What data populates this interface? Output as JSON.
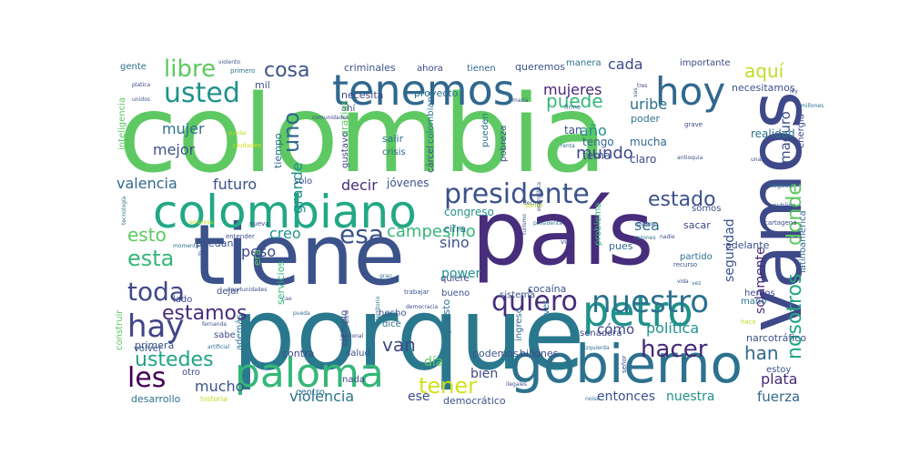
{
  "words": [
    {
      "text": "colombia",
      "color": "#5ec962"
    },
    {
      "text": "país",
      "color": "#472d7b"
    },
    {
      "text": "porque",
      "color": "#2a788e"
    },
    {
      "text": "tiene",
      "color": "#3b528b"
    },
    {
      "text": "vamos",
      "color": "#3e4989"
    },
    {
      "text": "gobierno",
      "color": "#2c728e"
    },
    {
      "text": "colombiano",
      "color": "#22a884"
    },
    {
      "text": "paloma",
      "color": "#35b779"
    },
    {
      "text": "tenemos",
      "color": "#31688e"
    },
    {
      "text": "petro",
      "color": "#21918c"
    },
    {
      "text": "hoy",
      "color": "#31688e"
    },
    {
      "text": "presidente",
      "color": "#3b528b"
    },
    {
      "text": "hay",
      "color": "#414487"
    },
    {
      "text": "nuestro",
      "color": "#2c728e"
    },
    {
      "text": "hacer",
      "color": "#482878"
    },
    {
      "text": "quiero",
      "color": "#472d7b"
    },
    {
      "text": "esa",
      "color": "#3b528b"
    },
    {
      "text": "toda",
      "color": "#3e4989"
    },
    {
      "text": "les",
      "color": "#440154"
    },
    {
      "text": "usted",
      "color": "#21918c"
    },
    {
      "text": "libre",
      "color": "#5ec962"
    },
    {
      "text": "cosa",
      "color": "#3b528b"
    },
    {
      "text": "uno",
      "color": "#31688e"
    },
    {
      "text": "puede",
      "color": "#35b779"
    },
    {
      "text": "aquí",
      "color": "#bddf26"
    },
    {
      "text": "estado",
      "color": "#3b528b"
    },
    {
      "text": "donde",
      "color": "#5ec962"
    },
    {
      "text": "nosotros",
      "color": "#22a884"
    },
    {
      "text": "tener",
      "color": "#d2e21b"
    },
    {
      "text": "ustedes",
      "color": "#20a486"
    },
    {
      "text": "estamos",
      "color": "#472d7b"
    },
    {
      "text": "esta",
      "color": "#35b779"
    },
    {
      "text": "esto",
      "color": "#5ec962"
    },
    {
      "text": "van",
      "color": "#3e4989"
    },
    {
      "text": "han",
      "color": "#31688e"
    },
    {
      "text": "campesino",
      "color": "#35b779"
    },
    {
      "text": "grande",
      "color": "#21918c"
    },
    {
      "text": "mundo",
      "color": "#3e4989"
    },
    {
      "text": "año",
      "color": "#21918c"
    },
    {
      "text": "mujeres",
      "color": "#482878"
    },
    {
      "text": "mujer",
      "color": "#2c728e"
    },
    {
      "text": "mejor",
      "color": "#3b528b"
    },
    {
      "text": "futuro",
      "color": "#3b528b"
    },
    {
      "text": "valencia",
      "color": "#31688e"
    },
    {
      "text": "decir",
      "color": "#472d7b"
    },
    {
      "text": "creo",
      "color": "#21918c"
    },
    {
      "text": "peso",
      "color": "#3e4989"
    },
    {
      "text": "sino",
      "color": "#3b528b"
    },
    {
      "text": "sea",
      "color": "#2c728e"
    },
    {
      "text": "cada",
      "color": "#3e4989"
    },
    {
      "text": "uribe",
      "color": "#2c728e"
    },
    {
      "text": "maduro",
      "color": "#3b528b"
    },
    {
      "text": "política",
      "color": "#21918c"
    },
    {
      "text": "cómo",
      "color": "#3e4989"
    },
    {
      "text": "mucho",
      "color": "#3b528b"
    },
    {
      "text": "plata",
      "color": "#482878"
    },
    {
      "text": "fuerza",
      "color": "#31688e"
    },
    {
      "text": "nuestra",
      "color": "#21918c"
    },
    {
      "text": "entonces",
      "color": "#3b528b"
    },
    {
      "text": "violencia",
      "color": "#2c728e"
    },
    {
      "text": "ese",
      "color": "#3e4989"
    },
    {
      "text": "día",
      "color": "#5ec962"
    },
    {
      "text": "bien",
      "color": "#3e4989"
    },
    {
      "text": "power",
      "color": "#21918c"
    },
    {
      "text": "seguridad",
      "color": "#3b528b"
    },
    {
      "text": "solamente",
      "color": "#482878"
    },
    {
      "text": "realidad",
      "color": "#2c728e"
    },
    {
      "text": "tengo",
      "color": "#31688e"
    },
    {
      "text": "tema",
      "color": "#3b528b"
    },
    {
      "text": "claro",
      "color": "#3e4989"
    },
    {
      "text": "mucha",
      "color": "#31688e"
    },
    {
      "text": "tan",
      "color": "#3b528b"
    },
    {
      "text": "poder",
      "color": "#2c728e"
    },
    {
      "text": "necesitamos",
      "color": "#3b528b"
    },
    {
      "text": "importante",
      "color": "#3e4989"
    },
    {
      "text": "queremos",
      "color": "#3b528b"
    },
    {
      "text": "manera",
      "color": "#2c728e"
    },
    {
      "text": "tienen",
      "color": "#31688e"
    },
    {
      "text": "ahora",
      "color": "#3e4989"
    },
    {
      "text": "criminales",
      "color": "#3b528b"
    },
    {
      "text": "gente",
      "color": "#2c728e"
    },
    {
      "text": "necesita",
      "color": "#3e4989"
    },
    {
      "text": "proyecto",
      "color": "#2c728e"
    },
    {
      "text": "mil",
      "color": "#3b528b"
    },
    {
      "text": "ahí",
      "color": "#3e4989"
    },
    {
      "text": "gracias",
      "color": "#5ec962"
    },
    {
      "text": "salir",
      "color": "#2c728e"
    },
    {
      "text": "crisis",
      "color": "#31688e"
    },
    {
      "text": "gustavo",
      "color": "#3e4989"
    },
    {
      "text": "tiempo",
      "color": "#2c728e"
    },
    {
      "text": "solo",
      "color": "#3b528b"
    },
    {
      "text": "jóvenes",
      "color": "#3b528b"
    },
    {
      "text": "congreso",
      "color": "#21918c"
    },
    {
      "text": "cifra",
      "color": "#31688e"
    },
    {
      "text": "colombiana",
      "color": "#2c728e"
    },
    {
      "text": "cárcel",
      "color": "#3e4989"
    },
    {
      "text": "pueden",
      "color": "#2c728e"
    },
    {
      "text": "pobreza",
      "color": "#3b528b"
    },
    {
      "text": "inteligencia",
      "color": "#5ec962"
    },
    {
      "text": "problema",
      "color": "#35b779"
    },
    {
      "text": "pues",
      "color": "#31688e"
    },
    {
      "text": "sacar",
      "color": "#3e4989"
    },
    {
      "text": "somos",
      "color": "#3b528b"
    },
    {
      "text": "adelante",
      "color": "#3b528b"
    },
    {
      "text": "latinoamérica",
      "color": "#31688e"
    },
    {
      "text": "partido",
      "color": "#2c728e"
    },
    {
      "text": "energía",
      "color": "#3e4989"
    },
    {
      "text": "narcotráfico",
      "color": "#3b528b"
    },
    {
      "text": "hemos",
      "color": "#3e4989"
    },
    {
      "text": "mano",
      "color": "#2c728e"
    },
    {
      "text": "estoy",
      "color": "#3b528b"
    },
    {
      "text": "senadora",
      "color": "#3e4989"
    },
    {
      "text": "ingreso",
      "color": "#31688e"
    },
    {
      "text": "podemos",
      "color": "#3b528b"
    },
    {
      "text": "billones",
      "color": "#3e4989"
    },
    {
      "text": "democrático",
      "color": "#3b528b"
    },
    {
      "text": "cocaína",
      "color": "#3b528b"
    },
    {
      "text": "impuesto",
      "color": "#2c728e"
    },
    {
      "text": "salud",
      "color": "#3b528b"
    },
    {
      "text": "contra",
      "color": "#3e4989"
    },
    {
      "text": "centro",
      "color": "#2c728e"
    },
    {
      "text": "primera",
      "color": "#3b528b"
    },
    {
      "text": "sabe",
      "color": "#3e4989"
    },
    {
      "text": "desarrollo",
      "color": "#2c728e"
    },
    {
      "text": "volver",
      "color": "#3b528b"
    },
    {
      "text": "lado",
      "color": "#3e4989"
    },
    {
      "text": "además",
      "color": "#2c728e"
    },
    {
      "text": "dejar",
      "color": "#3b528b"
    },
    {
      "text": "era",
      "color": "#5ec962"
    },
    {
      "text": "servicios",
      "color": "#35b779"
    },
    {
      "text": "puedan",
      "color": "#3b528b"
    },
    {
      "text": "construir",
      "color": "#5ec962"
    },
    {
      "text": "ejemplo",
      "color": "#3e4989"
    },
    {
      "text": "hecho",
      "color": "#3b528b"
    },
    {
      "text": "dice",
      "color": "#2c728e"
    },
    {
      "text": "nada",
      "color": "#3e4989"
    },
    {
      "text": "bueno",
      "color": "#3b528b"
    },
    {
      "text": "quiere",
      "color": "#3e4989"
    },
    {
      "text": "sistema",
      "color": "#3b528b"
    },
    {
      "text": "ver",
      "color": "#2c728e"
    },
    {
      "text": "otro",
      "color": "#3e4989"
    },
    {
      "text": "historia",
      "color": "#bddf26"
    },
    {
      "text": "violento",
      "color": "#3b528b"
    },
    {
      "text": "primero",
      "color": "#2c728e"
    },
    {
      "text": "platica",
      "color": "#3e4989"
    },
    {
      "text": "unidos",
      "color": "#3b528b"
    },
    {
      "text": "quedar",
      "color": "#bddf26"
    },
    {
      "text": "ciudades",
      "color": "#d2e21b"
    },
    {
      "text": "comunidades",
      "color": "#3e4989"
    },
    {
      "text": "maría",
      "color": "#3b528b"
    },
    {
      "text": "firme",
      "color": "#2c728e"
    },
    {
      "text": "grave",
      "color": "#3e4989"
    },
    {
      "text": "ley",
      "color": "#3b528b"
    },
    {
      "text": "millones",
      "color": "#2c728e"
    },
    {
      "text": "antioquia",
      "color": "#3b528b"
    },
    {
      "text": "unas",
      "color": "#3e4989"
    },
    {
      "text": "negocio",
      "color": "#2c728e"
    },
    {
      "text": "publica",
      "color": "#3b528b"
    },
    {
      "text": "cartagena",
      "color": "#3e4989"
    },
    {
      "text": "tecnología",
      "color": "#2c728e"
    },
    {
      "text": "empresa",
      "color": "#bddf26"
    },
    {
      "text": "nueva",
      "color": "#3e4989"
    },
    {
      "text": "entender",
      "color": "#3b528b"
    },
    {
      "text": "momento",
      "color": "#2c728e"
    },
    {
      "text": "pie",
      "color": "#3e4989"
    },
    {
      "text": "turismo",
      "color": "#3b528b"
    },
    {
      "text": "presidenta",
      "color": "#2c728e"
    },
    {
      "text": "vía",
      "color": "#3e4989"
    },
    {
      "text": "quieren",
      "color": "#3b528b"
    },
    {
      "text": "razones",
      "color": "#2c728e"
    },
    {
      "text": "nadie",
      "color": "#3e4989"
    },
    {
      "text": "recurso",
      "color": "#3b528b"
    },
    {
      "text": "vez",
      "color": "#2c728e"
    },
    {
      "text": "vida",
      "color": "#3e4989"
    },
    {
      "text": "hace",
      "color": "#bddf26"
    },
    {
      "text": "fernanda",
      "color": "#3b528b"
    },
    {
      "text": "artificial",
      "color": "#2c728e"
    },
    {
      "text": "oportunidades",
      "color": "#3e4989"
    },
    {
      "text": "cae",
      "color": "#3b528b"
    },
    {
      "text": "pueda",
      "color": "#2c728e"
    },
    {
      "text": "nacional",
      "color": "#3e4989"
    },
    {
      "text": "otra",
      "color": "#3b528b"
    },
    {
      "text": "territorio",
      "color": "#2c728e"
    },
    {
      "text": "democracia",
      "color": "#3e4989"
    },
    {
      "text": "trabajar",
      "color": "#3b528b"
    },
    {
      "text": "izquierda",
      "color": "#2c728e"
    },
    {
      "text": "señor",
      "color": "#3e4989"
    },
    {
      "text": "ilegales",
      "color": "#3b528b"
    },
    {
      "text": "noise",
      "color": "#2c728e"
    },
    {
      "text": "decirle",
      "color": "#3e4989"
    },
    {
      "text": "santo",
      "color": "#bddf26"
    },
    {
      "text": "energética",
      "color": "#3b528b"
    },
    {
      "text": "renta",
      "color": "#2c728e"
    },
    {
      "text": "tres",
      "color": "#3e4989"
    },
    {
      "text": "vas",
      "color": "#3b528b"
    },
    {
      "text": "gran",
      "color": "#2c728e"
    },
    {
      "text": "ahí",
      "color": "#3e4989"
    }
  ]
}
